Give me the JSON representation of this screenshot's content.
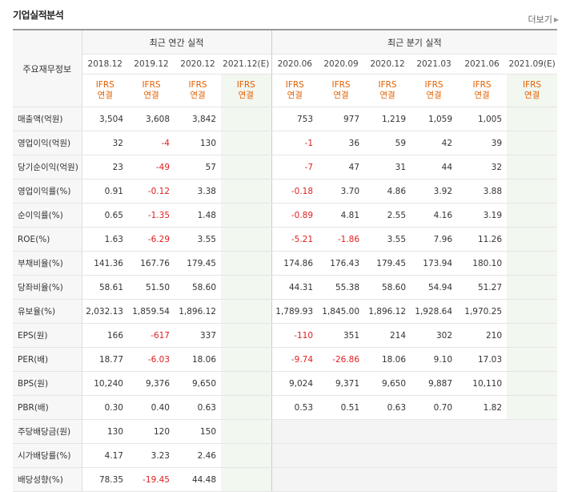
{
  "header": {
    "title": "기업실적분석",
    "more_label": "더보기"
  },
  "table": {
    "label_header": "주요재무정보",
    "annual_group": "최근 연간 실적",
    "quarter_group": "최근 분기 실적",
    "annual_periods": [
      "2018.12",
      "2019.12",
      "2020.12",
      "2021.12(E)"
    ],
    "quarter_periods": [
      "2020.06",
      "2020.09",
      "2020.12",
      "2021.03",
      "2021.06",
      "2021.09(E)"
    ],
    "type_line1": "IFRS",
    "type_line2": "연결",
    "rows": [
      {
        "label": "매출액(억원)",
        "annual": [
          "3,504",
          "3,608",
          "3,842",
          ""
        ],
        "quarter": [
          "753",
          "977",
          "1,219",
          "1,059",
          "1,005",
          ""
        ]
      },
      {
        "label": "영업이익(억원)",
        "annual": [
          "32",
          "-4",
          "130",
          ""
        ],
        "quarter": [
          "-1",
          "36",
          "59",
          "42",
          "39",
          ""
        ]
      },
      {
        "label": "당기순이익(억원)",
        "annual": [
          "23",
          "-49",
          "57",
          ""
        ],
        "quarter": [
          "-7",
          "47",
          "31",
          "44",
          "32",
          ""
        ]
      },
      {
        "label": "영업이익률(%)",
        "annual": [
          "0.91",
          "-0.12",
          "3.38",
          ""
        ],
        "quarter": [
          "-0.18",
          "3.70",
          "4.86",
          "3.92",
          "3.88",
          ""
        ]
      },
      {
        "label": "순이익률(%)",
        "annual": [
          "0.65",
          "-1.35",
          "1.48",
          ""
        ],
        "quarter": [
          "-0.89",
          "4.81",
          "2.55",
          "4.16",
          "3.19",
          ""
        ]
      },
      {
        "label": "ROE(%)",
        "annual": [
          "1.63",
          "-6.29",
          "3.55",
          ""
        ],
        "quarter": [
          "-5.21",
          "-1.86",
          "3.55",
          "7.96",
          "11.26",
          ""
        ]
      },
      {
        "label": "부채비율(%)",
        "annual": [
          "141.36",
          "167.76",
          "179.45",
          ""
        ],
        "quarter": [
          "174.86",
          "176.43",
          "179.45",
          "173.94",
          "180.10",
          ""
        ]
      },
      {
        "label": "당좌비율(%)",
        "annual": [
          "58.61",
          "51.50",
          "58.60",
          ""
        ],
        "quarter": [
          "44.31",
          "55.38",
          "58.60",
          "54.94",
          "51.27",
          ""
        ]
      },
      {
        "label": "유보율(%)",
        "annual": [
          "2,032.13",
          "1,859.54",
          "1,896.12",
          ""
        ],
        "quarter": [
          "1,789.93",
          "1,845.00",
          "1,896.12",
          "1,928.64",
          "1,970.25",
          ""
        ]
      },
      {
        "label": "EPS(원)",
        "annual": [
          "166",
          "-617",
          "337",
          ""
        ],
        "quarter": [
          "-110",
          "351",
          "214",
          "302",
          "210",
          ""
        ]
      },
      {
        "label": "PER(배)",
        "annual": [
          "18.77",
          "-6.03",
          "18.06",
          ""
        ],
        "quarter": [
          "-9.74",
          "-26.86",
          "18.06",
          "9.10",
          "17.03",
          ""
        ]
      },
      {
        "label": "BPS(원)",
        "annual": [
          "10,240",
          "9,376",
          "9,650",
          ""
        ],
        "quarter": [
          "9,024",
          "9,371",
          "9,650",
          "9,887",
          "10,110",
          ""
        ]
      },
      {
        "label": "PBR(배)",
        "annual": [
          "0.30",
          "0.40",
          "0.63",
          ""
        ],
        "quarter": [
          "0.53",
          "0.51",
          "0.63",
          "0.70",
          "1.82",
          ""
        ]
      },
      {
        "label": "주당배당금(원)",
        "annual": [
          "130",
          "120",
          "150",
          ""
        ],
        "quarter": [
          "",
          "",
          "",
          "",
          "",
          ""
        ]
      },
      {
        "label": "시가배당률(%)",
        "annual": [
          "4.17",
          "3.23",
          "2.46",
          ""
        ],
        "quarter": [
          "",
          "",
          "",
          "",
          "",
          ""
        ]
      },
      {
        "label": "배당성향(%)",
        "annual": [
          "78.35",
          "-19.45",
          "44.48",
          ""
        ],
        "quarter": [
          "",
          "",
          "",
          "",
          "",
          ""
        ]
      }
    ],
    "group_starts": [
      0,
      3,
      6,
      9,
      13
    ],
    "no_quarter_rows": [
      13,
      14,
      15
    ]
  }
}
